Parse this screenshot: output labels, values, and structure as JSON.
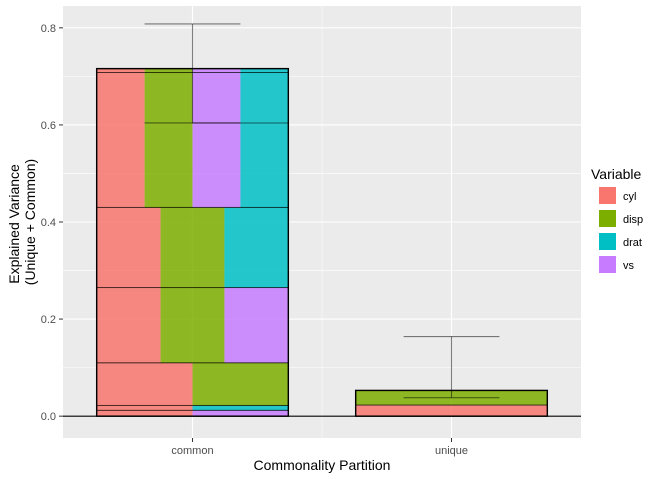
{
  "chart_data": {
    "type": "bar",
    "xlabel": "Commonality Partition",
    "ylabel_lines": [
      "Explained Variance",
      "(Unique + Common)"
    ],
    "categories": [
      "common",
      "unique"
    ],
    "ylim": [
      -0.045,
      0.845
    ],
    "yticks": [
      0.0,
      0.2,
      0.4,
      0.6,
      0.8
    ],
    "ytick_labels": [
      "0.0",
      "0.2",
      "0.4",
      "0.6",
      "0.8"
    ],
    "grid": true,
    "legend": {
      "title": "Variable",
      "placement": "right",
      "entries": [
        {
          "name": "cyl",
          "color": "#F8766D"
        },
        {
          "name": "disp",
          "color": "#7CAE00"
        },
        {
          "name": "drat",
          "color": "#00BFC4"
        },
        {
          "name": "vs",
          "color": "#C77CFF"
        }
      ]
    },
    "segments": [
      {
        "category": "common",
        "y0": 0.0,
        "y1": 0.012,
        "parts": [
          "cyl",
          "vs"
        ]
      },
      {
        "category": "common",
        "y0": 0.012,
        "y1": 0.022,
        "parts": [
          "cyl",
          "drat"
        ]
      },
      {
        "category": "common",
        "y0": 0.022,
        "y1": 0.11,
        "parts": [
          "cyl",
          "disp"
        ]
      },
      {
        "category": "common",
        "y0": 0.11,
        "y1": 0.265,
        "parts": [
          "cyl",
          "disp",
          "vs"
        ]
      },
      {
        "category": "common",
        "y0": 0.265,
        "y1": 0.43,
        "parts": [
          "cyl",
          "disp",
          "drat"
        ]
      },
      {
        "category": "common",
        "y0": 0.43,
        "y1": 0.708,
        "parts": [
          "cyl",
          "disp",
          "vs",
          "drat"
        ]
      },
      {
        "category": "common",
        "y0": 0.708,
        "y1": 0.716,
        "parts": [
          "cyl",
          "disp",
          "vs",
          "drat"
        ]
      },
      {
        "category": "unique",
        "y0": 0.0,
        "y1": 0.023,
        "parts": [
          "cyl"
        ]
      },
      {
        "category": "unique",
        "y0": 0.023,
        "y1": 0.053,
        "parts": [
          "disp"
        ]
      }
    ],
    "internal_lines": [
      {
        "category": "common",
        "y": 0.604,
        "x0": 0.5,
        "x1": 1.0
      }
    ],
    "totals": [
      {
        "category": "common",
        "value": 0.716
      },
      {
        "category": "unique",
        "value": 0.053
      }
    ],
    "error_bars": [
      {
        "category": "common",
        "ymin": 0.604,
        "ymax": 0.808
      },
      {
        "category": "unique",
        "ymin": 0.038,
        "ymax": 0.164
      }
    ]
  }
}
